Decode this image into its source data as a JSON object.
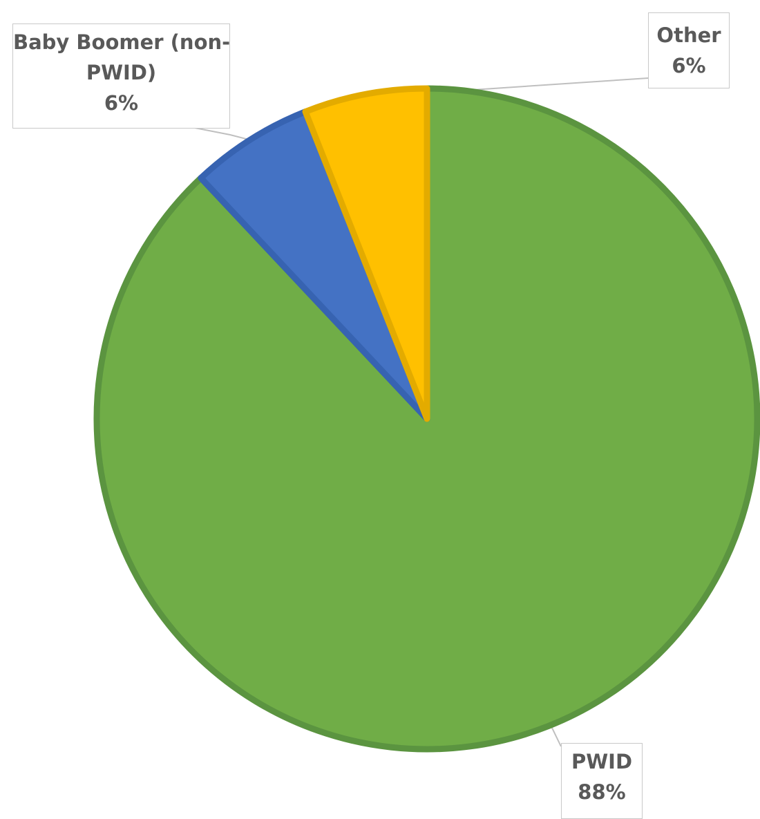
{
  "chart_data": {
    "type": "pie",
    "start_angle_deg": 0,
    "direction": "clockwise",
    "slices": [
      {
        "category_line1": "PWID",
        "category_line2": "",
        "value_label": "88%",
        "value": 88,
        "color": "#70AD47",
        "stroke": "#5B9440"
      },
      {
        "category_line1": "Baby Boomer (non-",
        "category_line2": "PWID)",
        "value_label": "6%",
        "value": 6,
        "color": "#4472C4",
        "stroke": "#3763B1"
      },
      {
        "category_line1": "Other",
        "category_line2": "",
        "value_label": "6%",
        "value": 6,
        "color": "#FFC000",
        "stroke": "#E3AB00"
      }
    ],
    "legend": "none",
    "data_labels": "callout"
  }
}
